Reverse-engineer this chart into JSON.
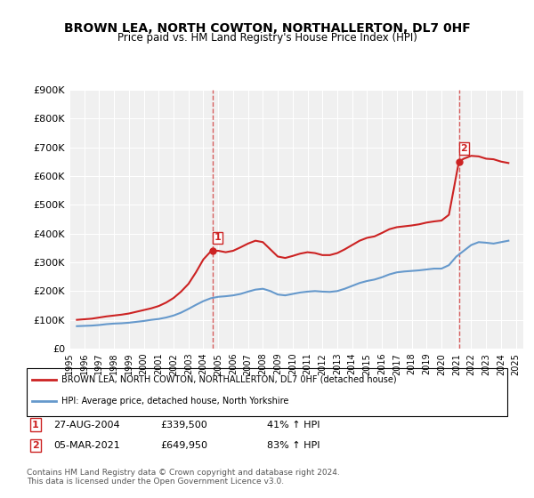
{
  "title": "BROWN LEA, NORTH COWTON, NORTHALLERTON, DL7 0HF",
  "subtitle": "Price paid vs. HM Land Registry's House Price Index (HPI)",
  "xlabel": "",
  "ylabel": "",
  "ylim": [
    0,
    900000
  ],
  "yticks": [
    0,
    100000,
    200000,
    300000,
    400000,
    500000,
    600000,
    700000,
    800000,
    900000
  ],
  "ytick_labels": [
    "£0",
    "£100K",
    "£200K",
    "£300K",
    "£400K",
    "£500K",
    "£600K",
    "£700K",
    "£800K",
    "£900K"
  ],
  "background_color": "#ffffff",
  "plot_bg_color": "#f0f0f0",
  "grid_color": "#ffffff",
  "hpi_color": "#6699cc",
  "price_color": "#cc2222",
  "marker_color": "#cc2222",
  "sale1": {
    "date_x": 2004.65,
    "price": 339500,
    "label": "1"
  },
  "sale2": {
    "date_x": 2021.17,
    "price": 649950,
    "label": "2"
  },
  "legend_label_red": "BROWN LEA, NORTH COWTON, NORTHALLERTON, DL7 0HF (detached house)",
  "legend_label_blue": "HPI: Average price, detached house, North Yorkshire",
  "annotation1": "1     27-AUG-2004          £339,500          41% ↑ HPI",
  "annotation2": "2     05-MAR-2021          £649,950          83% ↑ HPI",
  "footer": "Contains HM Land Registry data © Crown copyright and database right 2024.\nThis data is licensed under the Open Government Licence v3.0.",
  "hpi_data": {
    "years": [
      1995.5,
      1996.0,
      1996.5,
      1997.0,
      1997.5,
      1998.0,
      1998.5,
      1999.0,
      1999.5,
      2000.0,
      2000.5,
      2001.0,
      2001.5,
      2002.0,
      2002.5,
      2003.0,
      2003.5,
      2004.0,
      2004.5,
      2005.0,
      2005.5,
      2006.0,
      2006.5,
      2007.0,
      2007.5,
      2008.0,
      2008.5,
      2009.0,
      2009.5,
      2010.0,
      2010.5,
      2011.0,
      2011.5,
      2012.0,
      2012.5,
      2013.0,
      2013.5,
      2014.0,
      2014.5,
      2015.0,
      2015.5,
      2016.0,
      2016.5,
      2017.0,
      2017.5,
      2018.0,
      2018.5,
      2019.0,
      2019.5,
      2020.0,
      2020.5,
      2021.0,
      2021.5,
      2022.0,
      2022.5,
      2023.0,
      2023.5,
      2024.0,
      2024.5
    ],
    "values": [
      78000,
      79000,
      80000,
      82000,
      85000,
      87000,
      88000,
      90000,
      93000,
      96000,
      100000,
      103000,
      108000,
      115000,
      125000,
      138000,
      152000,
      165000,
      175000,
      180000,
      182000,
      185000,
      190000,
      198000,
      205000,
      208000,
      200000,
      188000,
      185000,
      190000,
      195000,
      198000,
      200000,
      198000,
      197000,
      200000,
      208000,
      218000,
      228000,
      235000,
      240000,
      248000,
      258000,
      265000,
      268000,
      270000,
      272000,
      275000,
      278000,
      278000,
      290000,
      320000,
      340000,
      360000,
      370000,
      368000,
      365000,
      370000,
      375000
    ]
  },
  "price_data": {
    "years": [
      1995.5,
      1996.0,
      1996.5,
      1997.0,
      1997.5,
      1998.0,
      1998.5,
      1999.0,
      1999.5,
      2000.0,
      2000.5,
      2001.0,
      2001.5,
      2002.0,
      2002.5,
      2003.0,
      2003.5,
      2004.0,
      2004.5,
      2004.65,
      2005.0,
      2005.5,
      2006.0,
      2006.5,
      2007.0,
      2007.5,
      2008.0,
      2008.5,
      2009.0,
      2009.5,
      2010.0,
      2010.5,
      2011.0,
      2011.5,
      2012.0,
      2012.5,
      2013.0,
      2013.5,
      2014.0,
      2014.5,
      2015.0,
      2015.5,
      2016.0,
      2016.5,
      2017.0,
      2017.5,
      2018.0,
      2018.5,
      2019.0,
      2019.5,
      2020.0,
      2020.5,
      2021.17,
      2021.5,
      2022.0,
      2022.5,
      2023.0,
      2023.5,
      2024.0,
      2024.5
    ],
    "values": [
      100000,
      102000,
      104000,
      108000,
      112000,
      115000,
      118000,
      122000,
      128000,
      134000,
      140000,
      148000,
      160000,
      176000,
      198000,
      225000,
      265000,
      310000,
      338000,
      339500,
      340000,
      335000,
      340000,
      352000,
      365000,
      375000,
      370000,
      345000,
      320000,
      315000,
      322000,
      330000,
      335000,
      332000,
      325000,
      325000,
      332000,
      345000,
      360000,
      375000,
      385000,
      390000,
      402000,
      415000,
      422000,
      425000,
      428000,
      432000,
      438000,
      442000,
      445000,
      465000,
      649950,
      660000,
      670000,
      668000,
      660000,
      658000,
      650000,
      645000
    ]
  },
  "xlim": [
    1995,
    2025.5
  ],
  "xticks": [
    1995,
    1996,
    1997,
    1998,
    1999,
    2000,
    2001,
    2002,
    2003,
    2004,
    2005,
    2006,
    2007,
    2008,
    2009,
    2010,
    2011,
    2012,
    2013,
    2014,
    2015,
    2016,
    2017,
    2018,
    2019,
    2020,
    2021,
    2022,
    2023,
    2024,
    2025
  ]
}
